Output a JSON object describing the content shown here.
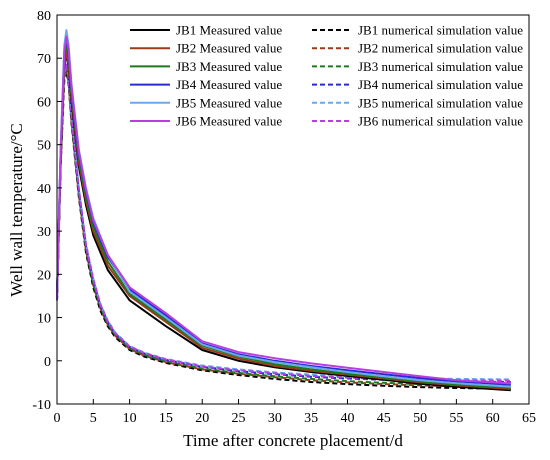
{
  "chart_data": {
    "type": "line",
    "xlabel": "Time after concrete placement/d",
    "ylabel": "Well wall temperature/°C",
    "xlim": [
      0,
      65
    ],
    "ylim": [
      -10,
      80
    ],
    "xticks": [
      "0",
      "5",
      "10",
      "15",
      "20",
      "25",
      "30",
      "35",
      "40",
      "45",
      "50",
      "55",
      "60",
      "65"
    ],
    "yticks": [
      "-10",
      "0",
      "10",
      "20",
      "30",
      "40",
      "50",
      "60",
      "70",
      "80"
    ],
    "grid": false,
    "legend_position": "top-right",
    "series": [
      {
        "name": "JB1 Measured value",
        "color": "#000000",
        "dash": "solid",
        "x": [
          0,
          0.5,
          1,
          1.3,
          1.6,
          2,
          3,
          4,
          5,
          7,
          10,
          15,
          20,
          25,
          30,
          35,
          40,
          45,
          50,
          55,
          62.5
        ],
        "y": [
          15,
          45,
          68,
          71,
          68,
          60,
          45,
          36,
          29,
          21,
          14,
          8,
          2.5,
          0,
          -1.5,
          -2.6,
          -3.5,
          -4.4,
          -5.3,
          -6,
          -6.8
        ]
      },
      {
        "name": "JB2 Measured value",
        "color": "#9b3a1b",
        "dash": "solid",
        "x": [
          0,
          0.5,
          1,
          1.3,
          1.6,
          2,
          3,
          4,
          5,
          7,
          10,
          15,
          20,
          25,
          30,
          35,
          40,
          45,
          50,
          55,
          62.5
        ],
        "y": [
          15,
          46,
          68,
          71.5,
          68.5,
          61,
          46,
          37,
          30,
          22,
          15,
          9,
          3,
          0.5,
          -1.2,
          -2.3,
          -3.2,
          -4.1,
          -5,
          -5.7,
          -6.5
        ]
      },
      {
        "name": "JB3 Measured value",
        "color": "#1e7a1e",
        "dash": "solid",
        "x": [
          0,
          0.5,
          1,
          1.3,
          1.6,
          2,
          3,
          4,
          5,
          7,
          10,
          15,
          20,
          25,
          30,
          35,
          40,
          45,
          50,
          55,
          62.5
        ],
        "y": [
          15,
          47,
          70,
          73,
          70,
          62,
          47,
          38,
          31,
          23,
          15.5,
          9.5,
          3.5,
          1,
          -0.8,
          -2,
          -3,
          -3.9,
          -4.8,
          -5.5,
          -6.2
        ]
      },
      {
        "name": "JB4 Measured value",
        "color": "#2b2bd4",
        "dash": "solid",
        "x": [
          0,
          0.5,
          1,
          1.3,
          1.6,
          2,
          3,
          4,
          5,
          7,
          10,
          15,
          20,
          25,
          30,
          35,
          40,
          45,
          50,
          55,
          62.5
        ],
        "y": [
          15,
          48,
          71,
          74.5,
          71.5,
          63,
          48,
          39,
          32,
          24,
          16.5,
          10.5,
          4,
          1.5,
          0,
          -1.2,
          -2.2,
          -3.1,
          -4,
          -4.8,
          -5.5
        ]
      },
      {
        "name": "JB5 Measured value",
        "color": "#6aa8ec",
        "dash": "solid",
        "x": [
          0,
          0.5,
          1,
          1.3,
          1.6,
          2,
          3,
          4,
          5,
          7,
          10,
          15,
          20,
          25,
          30,
          35,
          40,
          45,
          50,
          55,
          62.5
        ],
        "y": [
          15,
          49,
          73,
          76.5,
          73,
          64,
          49,
          40,
          33,
          24.5,
          16,
          10,
          3.8,
          1.2,
          -0.3,
          -1.5,
          -2.6,
          -3.6,
          -4.5,
          -5.2,
          -6
        ]
      },
      {
        "name": "JB6 Measured value",
        "color": "#b83ee0",
        "dash": "solid",
        "x": [
          0,
          0.5,
          1,
          1.3,
          1.6,
          2,
          3,
          4,
          5,
          7,
          10,
          15,
          20,
          25,
          30,
          35,
          40,
          45,
          50,
          55,
          62.5
        ],
        "y": [
          15,
          48,
          71.5,
          75,
          72,
          63.5,
          48.5,
          39.5,
          32.5,
          24.5,
          17,
          11,
          4.5,
          2,
          0.6,
          -0.6,
          -1.6,
          -2.6,
          -3.6,
          -4.5,
          -5.2
        ]
      },
      {
        "name": "JB1 numerical simulation value",
        "color": "#000000",
        "dash": "dashed",
        "x": [
          0,
          0.5,
          1,
          1.3,
          1.6,
          2,
          3,
          4,
          5,
          6,
          7,
          8,
          10,
          12,
          15,
          20,
          25,
          30,
          35,
          40,
          45,
          50,
          55,
          62.5
        ],
        "y": [
          14,
          45,
          65,
          67,
          64,
          55,
          38,
          25,
          17,
          11.5,
          8,
          5.5,
          2.5,
          1,
          -0.5,
          -2.2,
          -3.3,
          -4.2,
          -4.9,
          -5.4,
          -5.8,
          -6.1,
          -6.3,
          -6.5
        ]
      },
      {
        "name": "JB2 numerical simulation value",
        "color": "#9b3a1b",
        "dash": "dashed",
        "x": [
          0,
          0.5,
          1,
          1.3,
          1.6,
          2,
          3,
          4,
          5,
          6,
          7,
          8,
          10,
          12,
          15,
          20,
          25,
          30,
          35,
          40,
          45,
          50,
          55,
          62.5
        ],
        "y": [
          14,
          45.5,
          65.5,
          67.5,
          64.5,
          55.5,
          38.5,
          25.5,
          17.5,
          12,
          8.3,
          5.8,
          2.7,
          1.2,
          -0.3,
          -2,
          -3,
          -3.8,
          -4.5,
          -5,
          -5.4,
          -5.7,
          -5.9,
          -6.1
        ]
      },
      {
        "name": "JB3 numerical simulation value",
        "color": "#1e7a1e",
        "dash": "dashed",
        "x": [
          0,
          0.5,
          1,
          1.3,
          1.6,
          2,
          3,
          4,
          5,
          6,
          7,
          8,
          10,
          12,
          15,
          20,
          25,
          30,
          35,
          40,
          45,
          50,
          55,
          62.5
        ],
        "y": [
          14,
          46,
          66,
          68,
          65,
          56,
          39,
          26,
          18,
          12.3,
          8.6,
          6,
          2.9,
          1.4,
          -0.1,
          -1.8,
          -2.8,
          -3.6,
          -4.2,
          -4.7,
          -5.1,
          -5.4,
          -5.6,
          -5.8
        ]
      },
      {
        "name": "JB4 numerical simulation value",
        "color": "#2b2bd4",
        "dash": "dashed",
        "x": [
          0,
          0.5,
          1,
          1.3,
          1.6,
          2,
          3,
          4,
          5,
          6,
          7,
          8,
          10,
          12,
          15,
          20,
          25,
          30,
          35,
          40,
          45,
          50,
          55,
          62.5
        ],
        "y": [
          14,
          46.5,
          66.5,
          68.5,
          65.5,
          56.5,
          39.5,
          26.5,
          18.5,
          12.7,
          9,
          6.3,
          3.2,
          1.7,
          0.2,
          -1.4,
          -2.4,
          -3.1,
          -3.7,
          -4.1,
          -4.4,
          -4.6,
          -4.8,
          -4.9
        ]
      },
      {
        "name": "JB5 numerical simulation value",
        "color": "#6aa8ec",
        "dash": "dashed",
        "x": [
          0,
          0.5,
          1,
          1.3,
          1.6,
          2,
          3,
          4,
          5,
          6,
          7,
          8,
          10,
          12,
          15,
          20,
          25,
          30,
          35,
          40,
          45,
          50,
          55,
          62.5
        ],
        "y": [
          14,
          47,
          67,
          69,
          66,
          57,
          40,
          27,
          19,
          13,
          9.3,
          6.6,
          3.4,
          1.9,
          0.4,
          -1.1,
          -2,
          -2.7,
          -3.2,
          -3.6,
          -3.9,
          -4.1,
          -4.2,
          -4.3
        ]
      },
      {
        "name": "JB6 numerical simulation value",
        "color": "#b83ee0",
        "dash": "dashed",
        "x": [
          0,
          0.5,
          1,
          1.3,
          1.6,
          2,
          3,
          4,
          5,
          6,
          7,
          8,
          10,
          12,
          15,
          20,
          25,
          30,
          35,
          40,
          45,
          50,
          55,
          62.5
        ],
        "y": [
          14,
          46.8,
          66.8,
          68.8,
          65.8,
          56.8,
          39.8,
          26.8,
          18.8,
          12.9,
          9.1,
          6.4,
          3.3,
          1.8,
          0.3,
          -1.3,
          -2.2,
          -2.9,
          -3.5,
          -3.9,
          -4.2,
          -4.4,
          -4.5,
          -4.6
        ]
      }
    ]
  }
}
